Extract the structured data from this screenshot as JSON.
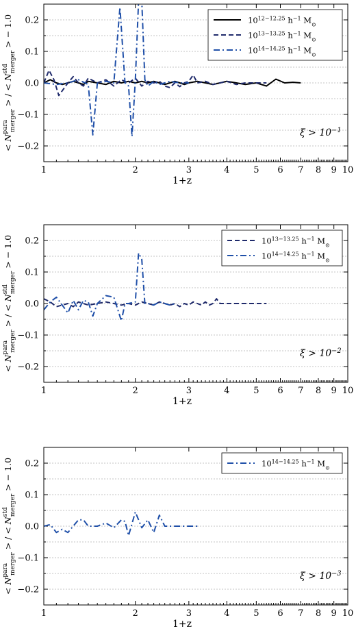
{
  "chart_data": [
    {
      "type": "line",
      "xlabel": "1+z",
      "ylabel": "< N_merger^para > / < N_merger^std > − 1.0",
      "xscale": "log",
      "xlim": [
        1,
        10
      ],
      "ylim": [
        -0.25,
        0.25
      ],
      "xticks": [
        "1",
        "2",
        "3",
        "4",
        "5",
        "6",
        "7",
        "8",
        "9",
        "10"
      ],
      "yticks": [
        "−0.2",
        "−0.1",
        "0.0",
        "0.1",
        "0.2"
      ],
      "grid": "horizontal dotted",
      "legend_position": "top-right",
      "annotation": "ξ > 10^−1",
      "series": [
        {
          "name": "10^{12−12.25} h^−1 M_⊙",
          "color": "#000000",
          "style": "solid",
          "x": [
            1.0,
            1.05,
            1.1,
            1.15,
            1.2,
            1.25,
            1.3,
            1.35,
            1.4,
            1.5,
            1.6,
            1.7,
            1.8,
            1.9,
            2.0,
            2.1,
            2.2,
            2.3,
            2.4,
            2.5,
            2.6,
            2.7,
            2.8,
            2.9,
            3.0,
            3.2,
            3.4,
            3.6,
            3.8,
            4.0,
            4.3,
            4.6,
            5.0,
            5.4,
            5.8,
            6.2,
            6.6,
            7.0
          ],
          "y": [
            0.0,
            0.01,
            0.0,
            -0.005,
            0.0,
            0.005,
            0.0,
            -0.005,
            0.005,
            0.0,
            -0.005,
            0.005,
            0.0,
            0.005,
            0.0,
            0.005,
            0.0,
            0.005,
            0.0,
            -0.005,
            0.0,
            0.005,
            0.0,
            -0.005,
            0.0,
            0.005,
            0.0,
            -0.005,
            0.0,
            0.005,
            0.0,
            -0.005,
            0.0,
            -0.01,
            0.012,
            0.0,
            0.002,
            0.0
          ]
        },
        {
          "name": "10^{13−13.25} h^−1 M_⊙",
          "color": "#1f2a6b",
          "style": "dashed",
          "x": [
            1.0,
            1.04,
            1.08,
            1.12,
            1.16,
            1.2,
            1.25,
            1.3,
            1.35,
            1.4,
            1.5,
            1.6,
            1.7,
            1.8,
            1.9,
            2.0,
            2.1,
            2.2,
            2.3,
            2.4,
            2.5,
            2.6,
            2.7,
            2.8,
            2.9,
            3.0,
            3.1,
            3.2,
            3.4,
            3.6,
            3.8,
            4.0,
            4.3,
            4.6,
            5.0,
            5.4
          ],
          "y": [
            0.0,
            0.04,
            0.01,
            -0.04,
            -0.02,
            0.0,
            0.02,
            0.0,
            -0.01,
            0.015,
            0.0,
            0.01,
            -0.01,
            0.01,
            0.0,
            0.015,
            -0.01,
            0.005,
            0.0,
            0.005,
            -0.01,
            -0.015,
            0.0,
            -0.012,
            0.0,
            0.005,
            0.025,
            0.0,
            0.005,
            -0.005,
            0.0,
            0.005,
            -0.005,
            0.0,
            0.0,
            0.0
          ]
        },
        {
          "name": "10^{14−14.25} h^−1 M_⊙",
          "color": "#1f4fa8",
          "style": "dashdot",
          "x": [
            1.0,
            1.1,
            1.2,
            1.3,
            1.4,
            1.45,
            1.5,
            1.6,
            1.7,
            1.78,
            1.85,
            1.9,
            1.95,
            2.0,
            2.05,
            2.1,
            2.15,
            2.2,
            2.3,
            2.4,
            2.5,
            2.6,
            2.8,
            3.0
          ],
          "y": [
            0.0,
            -0.005,
            0.0,
            0.01,
            -0.005,
            -0.165,
            0.0,
            0.005,
            0.0,
            0.24,
            0.0,
            -0.01,
            -0.17,
            0.01,
            0.26,
            0.26,
            0.01,
            -0.01,
            0.005,
            -0.005,
            0.0,
            0.005,
            0.0,
            0.0
          ]
        }
      ]
    },
    {
      "type": "line",
      "xlabel": "1+z",
      "ylabel": "< N_merger^para > / < N_merger^std > − 1.0",
      "xscale": "log",
      "xlim": [
        1,
        10
      ],
      "ylim": [
        -0.25,
        0.25
      ],
      "xticks": [
        "1",
        "2",
        "3",
        "4",
        "5",
        "6",
        "7",
        "8",
        "9",
        "10"
      ],
      "yticks": [
        "−0.2",
        "−0.1",
        "0.0",
        "0.1",
        "0.2"
      ],
      "grid": "horizontal dotted",
      "legend_position": "top-right",
      "annotation": "ξ > 10^−2",
      "series": [
        {
          "name": "10^{13−13.25} h^−1 M_⊙",
          "color": "#1f2a6b",
          "style": "dashed",
          "x": [
            1.0,
            1.05,
            1.1,
            1.15,
            1.2,
            1.25,
            1.3,
            1.35,
            1.4,
            1.5,
            1.6,
            1.7,
            1.8,
            1.9,
            2.0,
            2.1,
            2.2,
            2.3,
            2.4,
            2.5,
            2.6,
            2.7,
            2.8,
            2.9,
            3.0,
            3.1,
            3.2,
            3.3,
            3.4,
            3.5,
            3.6,
            3.7,
            3.8,
            4.0,
            4.3,
            4.6,
            5.0,
            5.4
          ],
          "y": [
            0.015,
            0.005,
            -0.01,
            -0.005,
            0.0,
            -0.01,
            0.005,
            0.0,
            -0.005,
            0.0,
            0.005,
            0.0,
            -0.005,
            0.0,
            -0.005,
            0.005,
            0.0,
            -0.005,
            0.005,
            0.0,
            -0.005,
            0.0,
            -0.01,
            0.0,
            -0.005,
            0.005,
            0.0,
            -0.005,
            0.005,
            -0.005,
            0.0,
            0.015,
            0.0,
            0.0,
            0.0,
            0.0,
            0.0,
            0.0
          ]
        },
        {
          "name": "10^{14−14.25} h^−1 M_⊙",
          "color": "#1f4fa8",
          "style": "dashdot",
          "x": [
            1.0,
            1.05,
            1.1,
            1.15,
            1.2,
            1.25,
            1.3,
            1.35,
            1.4,
            1.45,
            1.5,
            1.6,
            1.7,
            1.8,
            1.85,
            1.9,
            2.0,
            2.05,
            2.1,
            2.15,
            2.2,
            2.3,
            2.4,
            2.5,
            2.6,
            2.7
          ],
          "y": [
            -0.02,
            0.005,
            0.02,
            -0.005,
            -0.03,
            0.01,
            -0.02,
            0.01,
            0.005,
            -0.04,
            0.0,
            0.025,
            0.02,
            -0.055,
            0.0,
            0.0,
            0.005,
            0.16,
            0.14,
            0.0,
            0.0,
            -0.005,
            0.005,
            0.0,
            -0.005,
            0.0
          ]
        }
      ]
    },
    {
      "type": "line",
      "xlabel": "1+z",
      "ylabel": "< N_merger^para > / < N_merger^std > − 1.0",
      "xscale": "log",
      "xlim": [
        1,
        10
      ],
      "ylim": [
        -0.25,
        0.25
      ],
      "xticks": [
        "1",
        "2",
        "3",
        "4",
        "5",
        "6",
        "7",
        "8",
        "9",
        "10"
      ],
      "yticks": [
        "−0.2",
        "−0.1",
        "0.0",
        "0.1",
        "0.2"
      ],
      "grid": "horizontal dotted",
      "legend_position": "top-right",
      "annotation": "ξ > 10^−3",
      "series": [
        {
          "name": "10^{14−14.25} h^−1 M_⊙",
          "color": "#1f4fa8",
          "style": "dashdot",
          "x": [
            1.0,
            1.05,
            1.1,
            1.15,
            1.2,
            1.3,
            1.35,
            1.4,
            1.5,
            1.6,
            1.7,
            1.8,
            1.85,
            1.9,
            2.0,
            2.05,
            2.1,
            2.2,
            2.3,
            2.4,
            2.5,
            2.6,
            2.7,
            2.8,
            3.0,
            3.2
          ],
          "y": [
            0.0,
            0.005,
            -0.02,
            -0.01,
            -0.02,
            0.02,
            0.02,
            0.0,
            0.0,
            0.01,
            -0.005,
            0.02,
            0.015,
            -0.03,
            0.045,
            0.02,
            -0.005,
            0.02,
            -0.02,
            0.035,
            0.0,
            0.0,
            0.0,
            0.0,
            0.0,
            0.0
          ]
        }
      ]
    }
  ]
}
